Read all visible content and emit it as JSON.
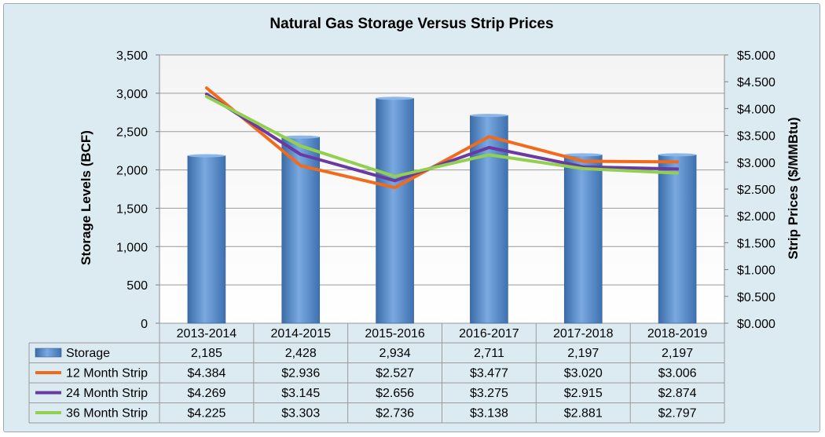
{
  "chart_data": {
    "type": "bar+line",
    "title": "Natural Gas Storage Versus Strip Prices",
    "ylabel_left": "Storage Levels (BCF)",
    "ylabel_right": "Strip Prices ($/MMBtu)",
    "ylim_left": [
      0,
      3500
    ],
    "ylim_right": [
      0,
      5
    ],
    "left_ticks": [
      "0",
      "500",
      "1,000",
      "1,500",
      "2,000",
      "2,500",
      "3,000",
      "3,500"
    ],
    "right_ticks": [
      "$0.000",
      "$0.500",
      "$1.000",
      "$1.500",
      "$2.000",
      "$2.500",
      "$3.000",
      "$3.500",
      "$4.000",
      "$4.500",
      "$5.000"
    ],
    "categories": [
      "2013-2014",
      "2014-2015",
      "2015-2016",
      "2016-2017",
      "2017-2018",
      "2018-2019"
    ],
    "grid": true,
    "legend": "data table below chart",
    "series": [
      {
        "name": "Storage",
        "type": "bar",
        "axis": "left",
        "color": "#4f81bd",
        "values": [
          2185,
          2428,
          2934,
          2711,
          2197,
          2197
        ],
        "labels": [
          "2,185",
          "2,428",
          "2,934",
          "2,711",
          "2,197",
          "2,197"
        ]
      },
      {
        "name": "12 Month Strip",
        "type": "line",
        "axis": "right",
        "color": "#f26b1d",
        "values": [
          4.384,
          2.936,
          2.527,
          3.477,
          3.02,
          3.006
        ],
        "labels": [
          "$4.384",
          "$2.936",
          "$2.527",
          "$3.477",
          "$3.020",
          "$3.006"
        ]
      },
      {
        "name": "24 Month Strip",
        "type": "line",
        "axis": "right",
        "color": "#6a3aa2",
        "values": [
          4.269,
          3.145,
          2.656,
          3.275,
          2.915,
          2.874
        ],
        "labels": [
          "$4.269",
          "$3.145",
          "$2.656",
          "$3.275",
          "$2.915",
          "$2.874"
        ]
      },
      {
        "name": "36 Month Strip",
        "type": "line",
        "axis": "right",
        "color": "#92d050",
        "values": [
          4.225,
          3.303,
          2.736,
          3.138,
          2.881,
          2.797
        ],
        "labels": [
          "$4.225",
          "$3.303",
          "$2.736",
          "$3.138",
          "$2.881",
          "$2.797"
        ]
      }
    ]
  }
}
